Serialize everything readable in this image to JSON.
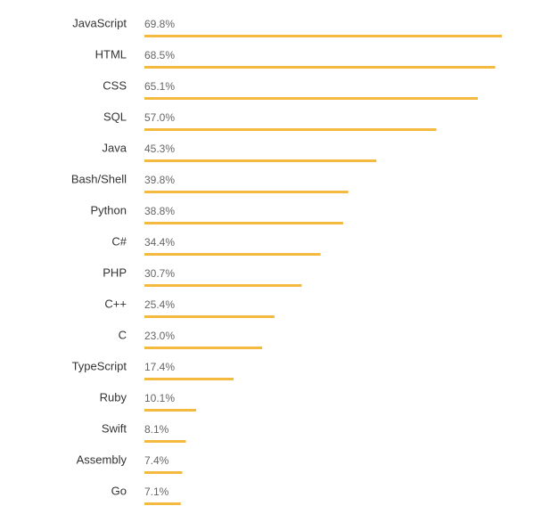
{
  "chart_data": {
    "type": "bar",
    "orientation": "horizontal",
    "categories": [
      "JavaScript",
      "HTML",
      "CSS",
      "SQL",
      "Java",
      "Bash/Shell",
      "Python",
      "C#",
      "PHP",
      "C++",
      "C",
      "TypeScript",
      "Ruby",
      "Swift",
      "Assembly",
      "Go"
    ],
    "values": [
      69.8,
      68.5,
      65.1,
      57.0,
      45.3,
      39.8,
      38.8,
      34.4,
      30.7,
      25.4,
      23.0,
      17.4,
      10.1,
      8.1,
      7.4,
      7.1
    ],
    "value_labels": [
      "69.8%",
      "68.5%",
      "65.1%",
      "57.0%",
      "45.3%",
      "39.8%",
      "38.8%",
      "34.4%",
      "30.7%",
      "25.4%",
      "23.0%",
      "17.4%",
      "10.1%",
      "8.1%",
      "7.4%",
      "7.1%"
    ],
    "value_unit": "%",
    "title": "",
    "xlabel": "",
    "ylabel": "",
    "grid": false,
    "bar_color": "#F4BA3F"
  }
}
